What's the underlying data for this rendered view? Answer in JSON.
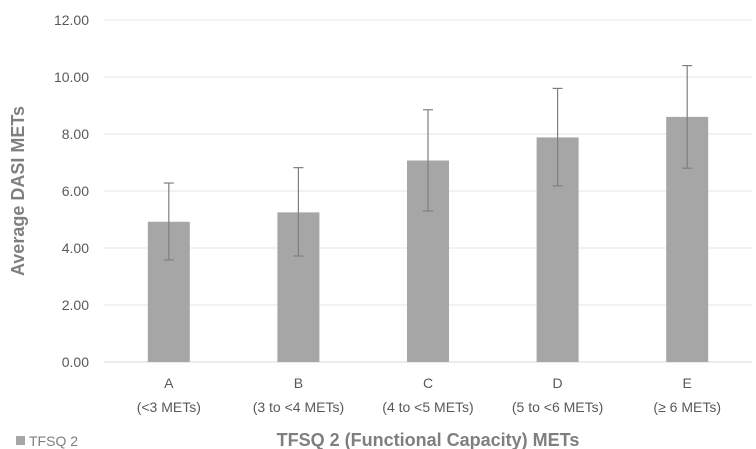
{
  "chart_data": {
    "type": "bar",
    "ylabel": "Average DASI METs",
    "xlabel": "TFSQ 2 (Functional Capacity) METs",
    "categories": [
      {
        "line1": "A",
        "line2": "(<3 METs)"
      },
      {
        "line1": "B",
        "line2": "(3 to <4 METs)"
      },
      {
        "line1": "C",
        "line2": "(4 to <5 METs)"
      },
      {
        "line1": "D",
        "line2": "(5 to <6 METs)"
      },
      {
        "line1": "E",
        "line2": "(≥ 6 METs)"
      }
    ],
    "series": [
      {
        "name": "TFSQ 2",
        "values": [
          4.92,
          5.25,
          7.07,
          7.88,
          8.6
        ],
        "error_low": [
          3.58,
          3.72,
          5.3,
          6.18,
          6.8
        ],
        "error_high": [
          6.28,
          6.82,
          8.85,
          9.6,
          10.4
        ],
        "color": "#a6a6a6"
      }
    ],
    "ylim": [
      0,
      12
    ],
    "yticks": [
      "0.00",
      "2.00",
      "4.00",
      "6.00",
      "8.00",
      "10.00",
      "12.00"
    ],
    "grid": true,
    "legend_position": "bottom-left"
  }
}
